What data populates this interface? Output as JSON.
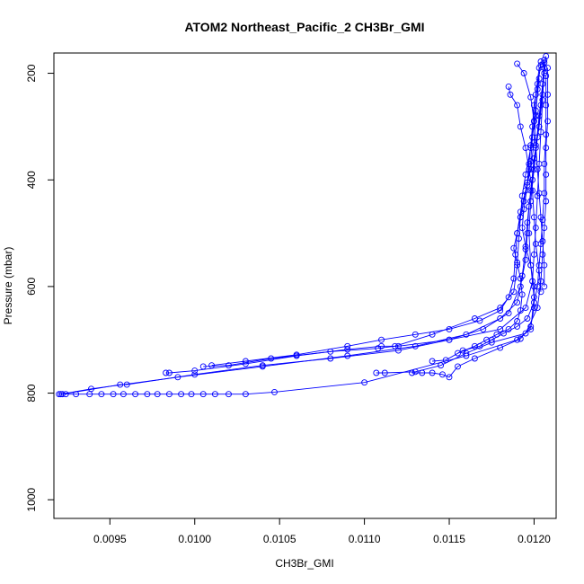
{
  "chart_data": {
    "type": "scatter",
    "title": "ATOM2 Northeast_Pacific_2 CH3Br_GMI",
    "xlabel": "CH3Br_GMI",
    "ylabel": "Pressure (mbar)",
    "xlim": [
      0.00917,
      0.01213
    ],
    "ylim": [
      1035,
      162
    ],
    "y_reversed": true,
    "grid": false,
    "legend": "none",
    "series_color": "#0000ff",
    "x_ticks": [
      {
        "value": 0.0095,
        "label": "0.0095"
      },
      {
        "value": 0.01,
        "label": "0.0100"
      },
      {
        "value": 0.0105,
        "label": "0.0105"
      },
      {
        "value": 0.011,
        "label": "0.0110"
      },
      {
        "value": 0.0115,
        "label": "0.0115"
      },
      {
        "value": 0.012,
        "label": "0.0120"
      }
    ],
    "y_ticks": [
      {
        "value": 200,
        "label": "200"
      },
      {
        "value": 400,
        "label": "400"
      },
      {
        "value": 600,
        "label": "600"
      },
      {
        "value": 800,
        "label": "800"
      },
      {
        "value": 1000,
        "label": "1000"
      }
    ],
    "series": [
      {
        "points": [
          [
            0.0092,
            802
          ],
          [
            0.00924,
            802
          ],
          [
            0.0093,
            802
          ],
          [
            0.00938,
            802
          ],
          [
            0.00945,
            802
          ],
          [
            0.00952,
            802
          ],
          [
            0.00958,
            802
          ],
          [
            0.00965,
            802
          ],
          [
            0.00972,
            802
          ],
          [
            0.00978,
            802
          ],
          [
            0.00985,
            802
          ],
          [
            0.00992,
            802
          ],
          [
            0.00998,
            802
          ],
          [
            0.01005,
            802
          ],
          [
            0.01012,
            802
          ],
          [
            0.0102,
            802
          ],
          [
            0.0103,
            802
          ],
          [
            0.01047,
            798
          ],
          [
            0.011,
            780
          ],
          [
            0.0116,
            730
          ],
          [
            0.0119,
            700
          ],
          [
            0.01198,
            680
          ],
          [
            0.012,
            620
          ],
          [
            0.01198,
            560
          ],
          [
            0.01197,
            500
          ],
          [
            0.01198,
            440
          ],
          [
            0.012,
            380
          ],
          [
            0.01202,
            320
          ],
          [
            0.01204,
            260
          ],
          [
            0.01206,
            200
          ],
          [
            0.01207,
            168
          ]
        ]
      },
      {
        "points": [
          [
            0.00921,
            802
          ],
          [
            0.00939,
            792
          ],
          [
            0.0099,
            770
          ],
          [
            0.0104,
            750
          ],
          [
            0.0109,
            730
          ],
          [
            0.0113,
            712
          ],
          [
            0.0116,
            690
          ],
          [
            0.0118,
            660
          ],
          [
            0.0119,
            630
          ],
          [
            0.01193,
            580
          ],
          [
            0.01195,
            530
          ],
          [
            0.01196,
            480
          ],
          [
            0.01198,
            420
          ],
          [
            0.012,
            360
          ],
          [
            0.01203,
            300
          ],
          [
            0.01205,
            240
          ],
          [
            0.01206,
            180
          ]
        ]
      },
      {
        "points": [
          [
            0.00922,
            802
          ],
          [
            0.00956,
            784
          ],
          [
            0.0096,
            784
          ],
          [
            0.01,
            765
          ],
          [
            0.0104,
            748
          ],
          [
            0.0108,
            735
          ],
          [
            0.0112,
            720
          ],
          [
            0.0115,
            700
          ],
          [
            0.0117,
            680
          ],
          [
            0.01185,
            650
          ],
          [
            0.01192,
            600
          ],
          [
            0.01195,
            550
          ],
          [
            0.01196,
            500
          ],
          [
            0.01197,
            450
          ],
          [
            0.01199,
            400
          ],
          [
            0.01201,
            340
          ],
          [
            0.01203,
            280
          ],
          [
            0.01205,
            220
          ],
          [
            0.01206,
            175
          ]
        ]
      },
      {
        "points": [
          [
            0.00983,
            762
          ],
          [
            0.00985,
            762
          ],
          [
            0.01,
            758
          ],
          [
            0.0103,
            745
          ],
          [
            0.0106,
            730
          ],
          [
            0.0109,
            718
          ],
          [
            0.0111,
            712
          ],
          [
            0.0112,
            712
          ],
          [
            0.0115,
            700
          ],
          [
            0.0118,
            680
          ],
          [
            0.01195,
            640
          ],
          [
            0.01199,
            590
          ],
          [
            0.012,
            540
          ],
          [
            0.01201,
            490
          ],
          [
            0.01202,
            430
          ],
          [
            0.01203,
            370
          ],
          [
            0.01204,
            310
          ],
          [
            0.01205,
            250
          ],
          [
            0.01206,
            190
          ]
        ]
      },
      {
        "points": [
          [
            0.01005,
            750
          ],
          [
            0.0102,
            748
          ],
          [
            0.01045,
            735
          ],
          [
            0.0108,
            722
          ],
          [
            0.01108,
            716
          ],
          [
            0.01118,
            712
          ],
          [
            0.0114,
            690
          ],
          [
            0.01165,
            660
          ],
          [
            0.0118,
            640
          ],
          [
            0.01188,
            610
          ],
          [
            0.0119,
            560
          ],
          [
            0.01191,
            510
          ],
          [
            0.01192,
            470
          ],
          [
            0.01193,
            430
          ],
          [
            0.01195,
            390
          ],
          [
            0.01198,
            340
          ],
          [
            0.012,
            290
          ],
          [
            0.01201,
            240
          ],
          [
            0.01203,
            190
          ]
        ]
      },
      {
        "points": [
          [
            0.0101,
            748
          ],
          [
            0.0103,
            740
          ],
          [
            0.0106,
            728
          ],
          [
            0.0109,
            712
          ],
          [
            0.0111,
            700
          ],
          [
            0.0113,
            690
          ],
          [
            0.0115,
            680
          ],
          [
            0.01168,
            664
          ],
          [
            0.0118,
            645
          ],
          [
            0.01185,
            620
          ],
          [
            0.01188,
            585
          ],
          [
            0.01189,
            540
          ],
          [
            0.0119,
            500
          ],
          [
            0.01192,
            460
          ],
          [
            0.01195,
            420
          ],
          [
            0.01198,
            380
          ],
          [
            0.012,
            330
          ],
          [
            0.01201,
            280
          ],
          [
            0.01202,
            230
          ],
          [
            0.01204,
            178
          ]
        ]
      },
      {
        "points": [
          [
            0.01107,
            762
          ],
          [
            0.01112,
            762
          ],
          [
            0.0113,
            760
          ],
          [
            0.01145,
            748
          ],
          [
            0.0116,
            725
          ],
          [
            0.01175,
            705
          ],
          [
            0.01195,
            688
          ],
          [
            0.01202,
            640
          ],
          [
            0.01204,
            590
          ],
          [
            0.01205,
            540
          ],
          [
            0.01206,
            490
          ],
          [
            0.01207,
            440
          ],
          [
            0.01207,
            390
          ],
          [
            0.01207,
            340
          ],
          [
            0.01208,
            290
          ],
          [
            0.01208,
            240
          ],
          [
            0.01208,
            190
          ]
        ]
      },
      {
        "points": [
          [
            0.01128,
            762
          ],
          [
            0.01134,
            762
          ],
          [
            0.0114,
            762
          ],
          [
            0.01146,
            765
          ],
          [
            0.0115,
            770
          ],
          [
            0.01155,
            750
          ],
          [
            0.01165,
            735
          ],
          [
            0.0118,
            715
          ],
          [
            0.01192,
            698
          ],
          [
            0.01198,
            675
          ],
          [
            0.012,
            640
          ],
          [
            0.012,
            600
          ],
          [
            0.01198,
            560
          ],
          [
            0.01195,
            525
          ],
          [
            0.01193,
            490
          ],
          [
            0.01194,
            455
          ],
          [
            0.01196,
            410
          ],
          [
            0.01198,
            365
          ],
          [
            0.01199,
            320
          ],
          [
            0.01201,
            270
          ],
          [
            0.01203,
            210
          ]
        ]
      },
      {
        "points": [
          [
            0.0114,
            740
          ],
          [
            0.01148,
            738
          ],
          [
            0.01158,
            720
          ],
          [
            0.01168,
            712
          ],
          [
            0.01175,
            700
          ],
          [
            0.01182,
            688
          ],
          [
            0.0119,
            675
          ],
          [
            0.01196,
            660
          ],
          [
            0.012,
            630
          ],
          [
            0.01202,
            600
          ],
          [
            0.01203,
            560
          ],
          [
            0.01204,
            520
          ],
          [
            0.01205,
            475
          ],
          [
            0.01206,
            425
          ],
          [
            0.01206,
            370
          ],
          [
            0.01207,
            315
          ],
          [
            0.01207,
            260
          ],
          [
            0.01207,
            205
          ]
        ]
      },
      {
        "points": [
          [
            0.01155,
            725
          ],
          [
            0.01165,
            712
          ],
          [
            0.01172,
            700
          ],
          [
            0.01178,
            690
          ],
          [
            0.01185,
            680
          ],
          [
            0.0119,
            665
          ],
          [
            0.01192,
            645
          ],
          [
            0.01193,
            615
          ],
          [
            0.01192,
            585
          ],
          [
            0.0119,
            555
          ],
          [
            0.01188,
            528
          ],
          [
            0.0119,
            500
          ],
          [
            0.01192,
            470
          ],
          [
            0.01194,
            440
          ],
          [
            0.01196,
            405
          ],
          [
            0.01197,
            370
          ],
          [
            0.01198,
            335
          ],
          [
            0.01199,
            300
          ],
          [
            0.012,
            260
          ],
          [
            0.01202,
            220
          ],
          [
            0.01204,
            185
          ]
        ]
      },
      {
        "points": [
          [
            0.01185,
            225
          ],
          [
            0.01186,
            240
          ],
          [
            0.0119,
            260
          ],
          [
            0.01192,
            300
          ],
          [
            0.01195,
            340
          ],
          [
            0.01197,
            380
          ],
          [
            0.01199,
            420
          ],
          [
            0.012,
            470
          ],
          [
            0.01201,
            520
          ],
          [
            0.01203,
            570
          ],
          [
            0.01204,
            610
          ]
        ]
      },
      {
        "points": [
          [
            0.0119,
            182
          ],
          [
            0.01194,
            200
          ],
          [
            0.01198,
            245
          ],
          [
            0.012,
            290
          ],
          [
            0.01201,
            335
          ],
          [
            0.01202,
            380
          ],
          [
            0.01203,
            425
          ],
          [
            0.01204,
            470
          ],
          [
            0.01205,
            515
          ],
          [
            0.01206,
            560
          ],
          [
            0.01206,
            600
          ]
        ]
      }
    ]
  }
}
